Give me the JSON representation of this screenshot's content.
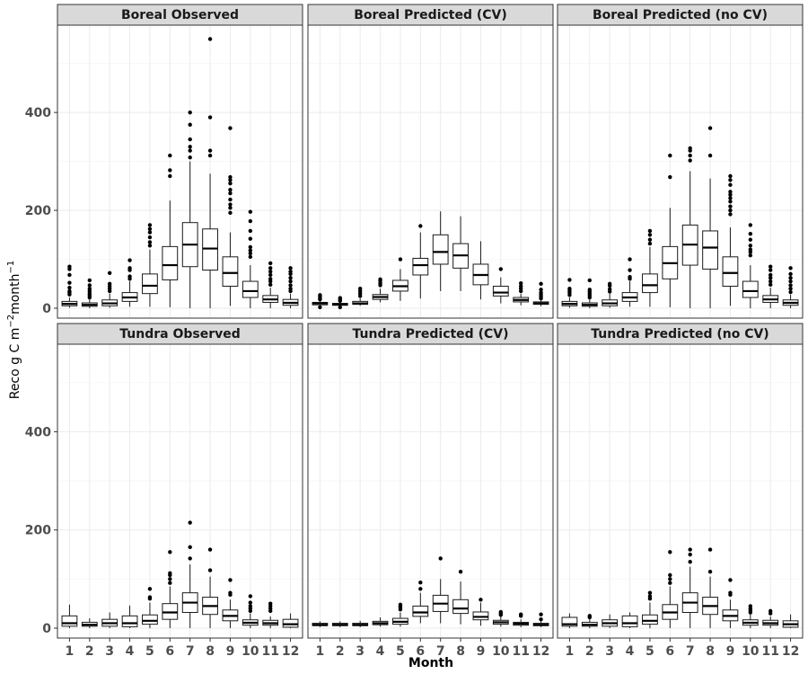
{
  "chart_data": {
    "type": "boxplot",
    "xlabel": "Month",
    "ylabel": {
      "main": "Reco g C m",
      "sup1": "−2",
      "mid": "month",
      "sup2": "−1"
    },
    "ylim": [
      0,
      560
    ],
    "yticks": [
      0,
      200,
      400
    ],
    "categories": [
      "1",
      "2",
      "3",
      "4",
      "5",
      "6",
      "7",
      "8",
      "9",
      "10",
      "11",
      "12"
    ],
    "panels": [
      {
        "title": "Boreal Observed",
        "boxes": [
          {
            "lo": 1,
            "q1": 5,
            "med": 9,
            "q3": 14,
            "hi": 22,
            "out": [
              28,
              32,
              35,
              42,
              52,
              68,
              80,
              85
            ]
          },
          {
            "lo": 0,
            "q1": 4,
            "med": 7,
            "q3": 11,
            "hi": 18,
            "out": [
              22,
              26,
              30,
              35,
              40,
              47,
              57
            ]
          },
          {
            "lo": 1,
            "q1": 5,
            "med": 10,
            "q3": 17,
            "hi": 30,
            "out": [
              35,
              40,
              45,
              50,
              72
            ]
          },
          {
            "lo": 3,
            "q1": 14,
            "med": 22,
            "q3": 32,
            "hi": 55,
            "out": [
              60,
              65,
              78,
              82,
              98
            ]
          },
          {
            "lo": 3,
            "q1": 30,
            "med": 46,
            "q3": 70,
            "hi": 120,
            "out": [
              128,
              135,
              145,
              155,
              162,
              170
            ]
          },
          {
            "lo": 2,
            "q1": 58,
            "med": 88,
            "q3": 126,
            "hi": 220,
            "out": [
              270,
              282,
              312
            ]
          },
          {
            "lo": 0,
            "q1": 85,
            "med": 130,
            "q3": 175,
            "hi": 300,
            "out": [
              308,
              322,
              330,
              345,
              375,
              400
            ]
          },
          {
            "lo": 0,
            "q1": 78,
            "med": 122,
            "q3": 162,
            "hi": 275,
            "out": [
              312,
              322,
              390,
              550
            ]
          },
          {
            "lo": 5,
            "q1": 45,
            "med": 72,
            "q3": 105,
            "hi": 155,
            "out": [
              195,
              205,
              212,
              222,
              235,
              242,
              255,
              262,
              268,
              368
            ]
          },
          {
            "lo": 0,
            "q1": 22,
            "med": 35,
            "q3": 55,
            "hi": 88,
            "out": [
              105,
              112,
              118,
              125,
              142,
              158,
              178,
              197
            ]
          },
          {
            "lo": 0,
            "q1": 12,
            "med": 18,
            "q3": 26,
            "hi": 42,
            "out": [
              48,
              55,
              60,
              68,
              75,
              82,
              92
            ]
          },
          {
            "lo": 0,
            "q1": 6,
            "med": 11,
            "q3": 18,
            "hi": 30,
            "out": [
              35,
              40,
              47,
              55,
              62,
              70,
              75,
              82
            ]
          }
        ]
      },
      {
        "title": "Boreal Predicted (CV)",
        "boxes": [
          {
            "lo": 4,
            "q1": 7,
            "med": 10,
            "q3": 12,
            "hi": 16,
            "out": [
              2,
              18,
              21,
              24,
              27
            ]
          },
          {
            "lo": 3,
            "q1": 6,
            "med": 8,
            "q3": 10,
            "hi": 13,
            "out": [
              2,
              15,
              18,
              21
            ]
          },
          {
            "lo": 5,
            "q1": 8,
            "med": 10,
            "q3": 14,
            "hi": 20,
            "out": [
              25,
              30,
              35,
              40
            ]
          },
          {
            "lo": 12,
            "q1": 18,
            "med": 23,
            "q3": 28,
            "hi": 40,
            "out": [
              47,
              51,
              56,
              59
            ]
          },
          {
            "lo": 15,
            "q1": 35,
            "med": 45,
            "q3": 57,
            "hi": 80,
            "out": [
              100
            ]
          },
          {
            "lo": 20,
            "q1": 68,
            "med": 88,
            "q3": 102,
            "hi": 155,
            "out": [
              168
            ]
          },
          {
            "lo": 35,
            "q1": 90,
            "med": 115,
            "q3": 150,
            "hi": 198,
            "out": []
          },
          {
            "lo": 35,
            "q1": 82,
            "med": 108,
            "q3": 132,
            "hi": 188,
            "out": []
          },
          {
            "lo": 18,
            "q1": 48,
            "med": 68,
            "q3": 90,
            "hi": 137,
            "out": []
          },
          {
            "lo": 10,
            "q1": 25,
            "med": 32,
            "q3": 45,
            "hi": 63,
            "out": [
              80
            ]
          },
          {
            "lo": 6,
            "q1": 13,
            "med": 17,
            "q3": 22,
            "hi": 30,
            "out": [
              35,
              40,
              45,
              51
            ]
          },
          {
            "lo": 4,
            "q1": 8,
            "med": 10,
            "q3": 13,
            "hi": 17,
            "out": [
              20,
              24,
              28,
              32,
              38,
              50
            ]
          }
        ]
      },
      {
        "title": "Boreal Predicted (no CV)",
        "boxes": [
          {
            "lo": 1,
            "q1": 5,
            "med": 9,
            "q3": 14,
            "hi": 22,
            "out": [
              27,
              32,
              36,
              40,
              58
            ]
          },
          {
            "lo": 0,
            "q1": 4,
            "med": 7,
            "q3": 11,
            "hi": 18,
            "out": [
              22,
              26,
              30,
              34,
              38,
              57
            ]
          },
          {
            "lo": 1,
            "q1": 5,
            "med": 10,
            "q3": 17,
            "hi": 30,
            "out": [
              34,
              39,
              46,
              50
            ]
          },
          {
            "lo": 3,
            "q1": 14,
            "med": 22,
            "q3": 32,
            "hi": 55,
            "out": [
              60,
              64,
              78,
              100
            ]
          },
          {
            "lo": 3,
            "q1": 32,
            "med": 47,
            "q3": 70,
            "hi": 125,
            "out": [
              132,
              140,
              150,
              158
            ]
          },
          {
            "lo": 2,
            "q1": 60,
            "med": 92,
            "q3": 126,
            "hi": 205,
            "out": [
              268,
              312
            ]
          },
          {
            "lo": 0,
            "q1": 88,
            "med": 130,
            "q3": 170,
            "hi": 280,
            "out": [
              302,
              312,
              322,
              327
            ]
          },
          {
            "lo": 0,
            "q1": 80,
            "med": 124,
            "q3": 158,
            "hi": 265,
            "out": [
              312,
              368
            ]
          },
          {
            "lo": 5,
            "q1": 45,
            "med": 72,
            "q3": 105,
            "hi": 165,
            "out": [
              192,
              200,
              208,
              218,
              225,
              232,
              238,
              252,
              262,
              270
            ]
          },
          {
            "lo": 0,
            "q1": 22,
            "med": 35,
            "q3": 55,
            "hi": 88,
            "out": [
              108,
              115,
              120,
              128,
              140,
              152,
              170
            ]
          },
          {
            "lo": 0,
            "q1": 12,
            "med": 18,
            "q3": 26,
            "hi": 42,
            "out": [
              48,
              55,
              62,
              68,
              78,
              85
            ]
          },
          {
            "lo": 0,
            "q1": 6,
            "med": 11,
            "q3": 17,
            "hi": 28,
            "out": [
              33,
              40,
              47,
              55,
              62,
              70,
              82
            ]
          }
        ]
      },
      {
        "title": "Tundra Observed",
        "boxes": [
          {
            "lo": 0,
            "q1": 4,
            "med": 10,
            "q3": 25,
            "hi": 48,
            "out": []
          },
          {
            "lo": 0,
            "q1": 4,
            "med": 7,
            "q3": 12,
            "hi": 20,
            "out": []
          },
          {
            "lo": 0,
            "q1": 4,
            "med": 10,
            "q3": 18,
            "hi": 32,
            "out": []
          },
          {
            "lo": 0,
            "q1": 3,
            "med": 10,
            "q3": 25,
            "hi": 46,
            "out": []
          },
          {
            "lo": 0,
            "q1": 8,
            "med": 15,
            "q3": 27,
            "hi": 52,
            "out": [
              60,
              63,
              80
            ]
          },
          {
            "lo": 0,
            "q1": 18,
            "med": 32,
            "q3": 50,
            "hi": 85,
            "out": [
              92,
              100,
              108,
              112,
              155
            ]
          },
          {
            "lo": 0,
            "q1": 32,
            "med": 52,
            "q3": 72,
            "hi": 130,
            "out": [
              142,
              165,
              215
            ]
          },
          {
            "lo": 0,
            "q1": 28,
            "med": 45,
            "q3": 63,
            "hi": 105,
            "out": [
              118,
              160
            ]
          },
          {
            "lo": 0,
            "q1": 15,
            "med": 25,
            "q3": 37,
            "hi": 58,
            "out": [
              68,
              72,
              98
            ]
          },
          {
            "lo": 0,
            "q1": 6,
            "med": 11,
            "q3": 17,
            "hi": 30,
            "out": [
              35,
              40,
              45,
              52,
              65
            ]
          },
          {
            "lo": 0,
            "q1": 6,
            "med": 10,
            "q3": 16,
            "hi": 24,
            "out": [
              35,
              40,
              45,
              50
            ]
          },
          {
            "lo": 0,
            "q1": 2,
            "med": 8,
            "q3": 18,
            "hi": 30,
            "out": []
          }
        ]
      },
      {
        "title": "Tundra Predicted (CV)",
        "boxes": [
          {
            "lo": 2,
            "q1": 5,
            "med": 7,
            "q3": 10,
            "hi": 14,
            "out": []
          },
          {
            "lo": 2,
            "q1": 5,
            "med": 7,
            "q3": 10,
            "hi": 14,
            "out": []
          },
          {
            "lo": 2,
            "q1": 5,
            "med": 7,
            "q3": 10,
            "hi": 15,
            "out": []
          },
          {
            "lo": 3,
            "q1": 7,
            "med": 10,
            "q3": 14,
            "hi": 22,
            "out": []
          },
          {
            "lo": 3,
            "q1": 8,
            "med": 13,
            "q3": 20,
            "hi": 32,
            "out": [
              38,
              42,
              45,
              48
            ]
          },
          {
            "lo": 10,
            "q1": 24,
            "med": 32,
            "q3": 45,
            "hi": 72,
            "out": [
              80,
              93
            ]
          },
          {
            "lo": 10,
            "q1": 34,
            "med": 50,
            "q3": 67,
            "hi": 100,
            "out": [
              142
            ]
          },
          {
            "lo": 8,
            "q1": 30,
            "med": 40,
            "q3": 58,
            "hi": 95,
            "out": [
              115
            ]
          },
          {
            "lo": 5,
            "q1": 17,
            "med": 23,
            "q3": 33,
            "hi": 52,
            "out": [
              58
            ]
          },
          {
            "lo": 3,
            "q1": 8,
            "med": 12,
            "q3": 16,
            "hi": 24,
            "out": [
              27,
              30,
              33
            ]
          },
          {
            "lo": 2,
            "q1": 6,
            "med": 9,
            "q3": 12,
            "hi": 18,
            "out": [
              25,
              28
            ]
          },
          {
            "lo": 2,
            "q1": 5,
            "med": 7,
            "q3": 10,
            "hi": 14,
            "out": [
              18,
              28
            ]
          }
        ]
      },
      {
        "title": "Tundra Predicted (no CV)",
        "boxes": [
          {
            "lo": 0,
            "q1": 4,
            "med": 8,
            "q3": 22,
            "hi": 30,
            "out": []
          },
          {
            "lo": 0,
            "q1": 4,
            "med": 7,
            "q3": 12,
            "hi": 20,
            "out": [
              22,
              25
            ]
          },
          {
            "lo": 0,
            "q1": 4,
            "med": 10,
            "q3": 17,
            "hi": 28,
            "out": []
          },
          {
            "lo": 0,
            "q1": 3,
            "med": 10,
            "q3": 25,
            "hi": 32,
            "out": []
          },
          {
            "lo": 0,
            "q1": 8,
            "med": 15,
            "q3": 27,
            "hi": 52,
            "out": [
              60,
              65,
              72
            ]
          },
          {
            "lo": 0,
            "q1": 18,
            "med": 32,
            "q3": 48,
            "hi": 85,
            "out": [
              92,
              100,
              108,
              155
            ]
          },
          {
            "lo": 0,
            "q1": 32,
            "med": 52,
            "q3": 72,
            "hi": 125,
            "out": [
              135,
              150,
              160
            ]
          },
          {
            "lo": 0,
            "q1": 28,
            "med": 45,
            "q3": 63,
            "hi": 105,
            "out": [
              115,
              160
            ]
          },
          {
            "lo": 0,
            "q1": 15,
            "med": 25,
            "q3": 37,
            "hi": 58,
            "out": [
              68,
              72,
              98
            ]
          },
          {
            "lo": 0,
            "q1": 6,
            "med": 11,
            "q3": 17,
            "hi": 28,
            "out": [
              32,
              36,
              40,
              45
            ]
          },
          {
            "lo": 0,
            "q1": 6,
            "med": 10,
            "q3": 16,
            "hi": 24,
            "out": [
              30,
              35
            ]
          },
          {
            "lo": 0,
            "q1": 2,
            "med": 8,
            "q3": 15,
            "hi": 28,
            "out": []
          }
        ]
      }
    ]
  }
}
